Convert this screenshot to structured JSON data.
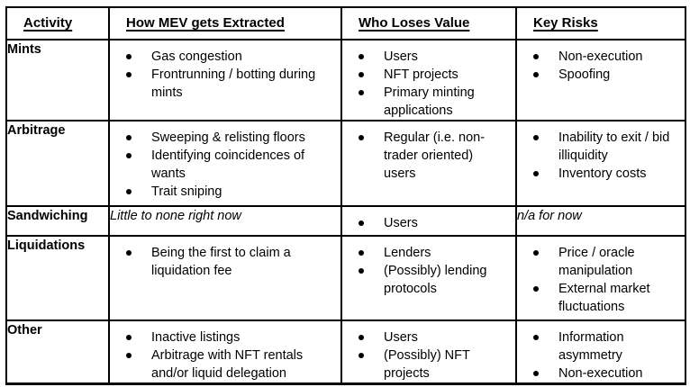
{
  "colors": {
    "background": "#ffffff",
    "border": "#000000",
    "text": "#000000"
  },
  "table": {
    "headers": [
      "Activity",
      "How MEV gets Extracted",
      "Who Loses Value",
      "Key Risks"
    ],
    "rows": [
      {
        "activity": "Mints",
        "how": {
          "bullets": [
            "Gas congestion",
            "Frontrunning / botting during mints"
          ]
        },
        "who": {
          "bullets": [
            "Users",
            "NFT projects",
            "Primary minting applications"
          ]
        },
        "risks": {
          "bullets": [
            "Non-execution",
            "Spoofing"
          ]
        }
      },
      {
        "activity": "Arbitrage",
        "how": {
          "bullets": [
            "Sweeping & relisting floors",
            "Identifying coincidences of wants",
            "Trait sniping"
          ]
        },
        "who": {
          "bullets": [
            "Regular (i.e. non-trader oriented) users"
          ]
        },
        "risks": {
          "bullets": [
            "Inability to exit / bid illiquidity",
            "Inventory costs"
          ]
        }
      },
      {
        "activity": "Sandwiching",
        "how": {
          "note": "Little to none right now"
        },
        "who": {
          "bullets": [
            "Users"
          ]
        },
        "risks": {
          "note": "n/a for now"
        }
      },
      {
        "activity": "Liquidations",
        "how": {
          "bullets": [
            "Being the first to claim a liquidation fee"
          ]
        },
        "who": {
          "bullets": [
            "Lenders",
            "(Possibly) lending protocols"
          ]
        },
        "risks": {
          "bullets": [
            "Price / oracle manipulation",
            "External market fluctuations"
          ]
        }
      },
      {
        "activity": "Other",
        "how": {
          "bullets": [
            "Inactive listings",
            "Arbitrage with NFT rentals and/or liquid delegation"
          ]
        },
        "who": {
          "bullets": [
            "Users",
            "(Possibly) NFT projects"
          ]
        },
        "risks": {
          "bullets": [
            "Information asymmetry",
            "Non-execution"
          ]
        }
      }
    ]
  }
}
